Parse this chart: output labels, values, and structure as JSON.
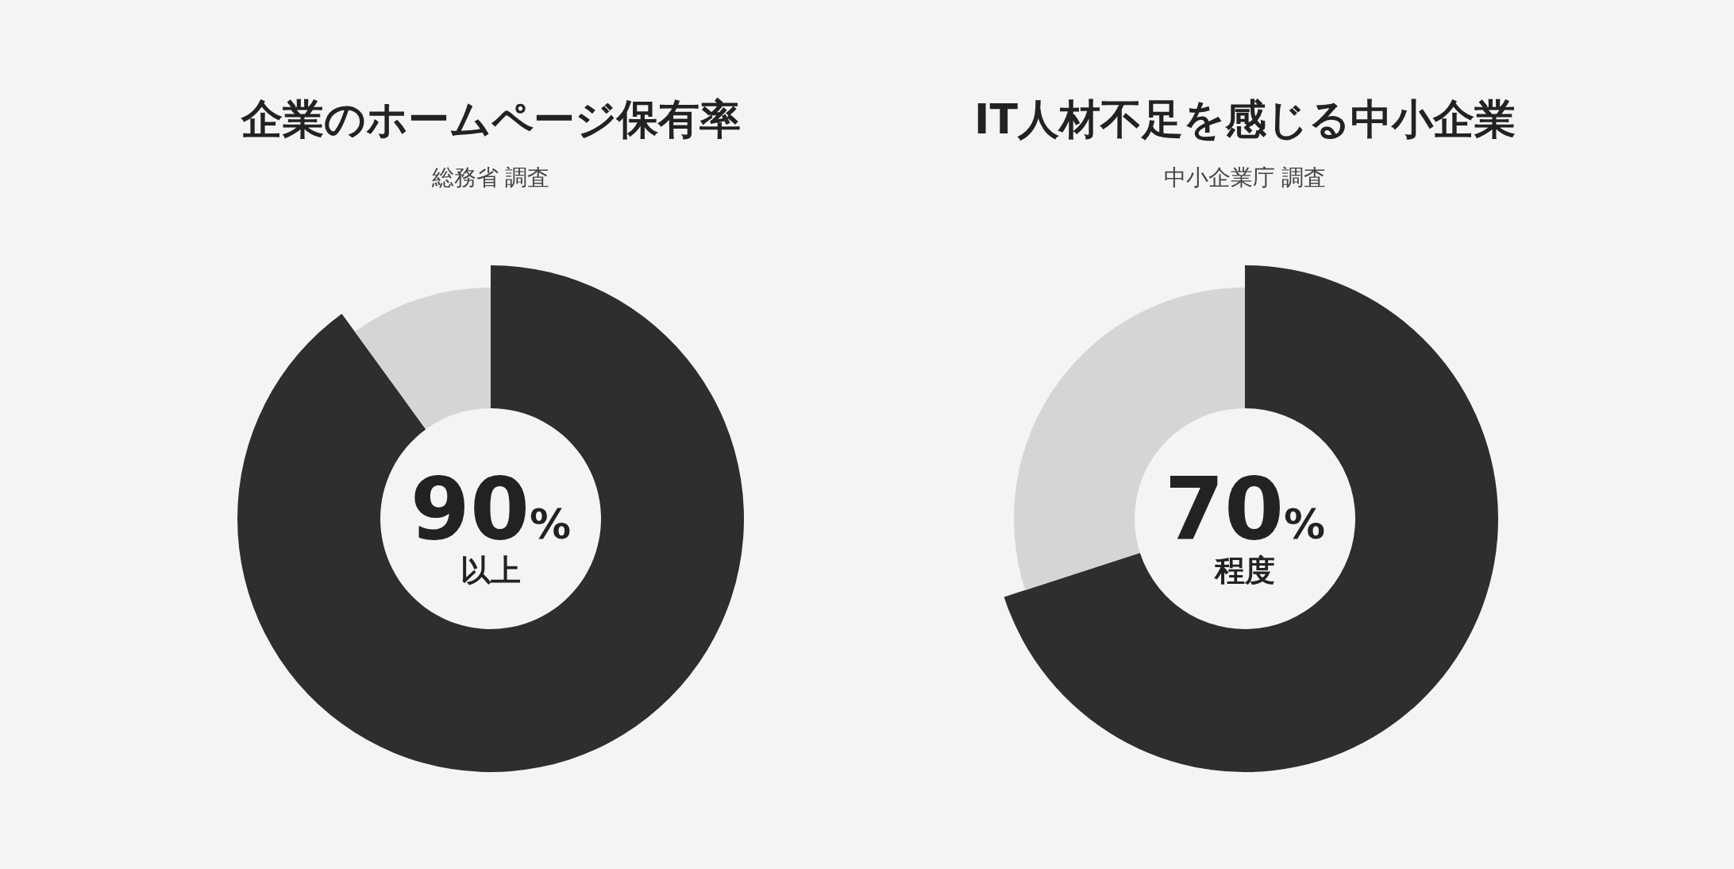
{
  "chart_data": [
    {
      "type": "donut",
      "title": "企業のホームページ保有率",
      "subtitle": "総務省 調査",
      "categories": [
        null,
        null
      ],
      "values": [
        90,
        10
      ],
      "colors": [
        "#2e2e2e",
        "#d5d5d5"
      ],
      "value_labels": [
        "90%",
        null
      ],
      "annotations": [
        "以上"
      ]
    },
    {
      "type": "donut",
      "title": "IT人材不足を感じる中小企業",
      "subtitle": "中小企業庁 調査",
      "categories": [
        null,
        null
      ],
      "values": [
        70,
        30
      ],
      "colors": [
        "#2e2e2e",
        "#d5d5d5"
      ],
      "value_labels": [
        "70%",
        null
      ],
      "annotations": [
        "程度"
      ]
    }
  ]
}
